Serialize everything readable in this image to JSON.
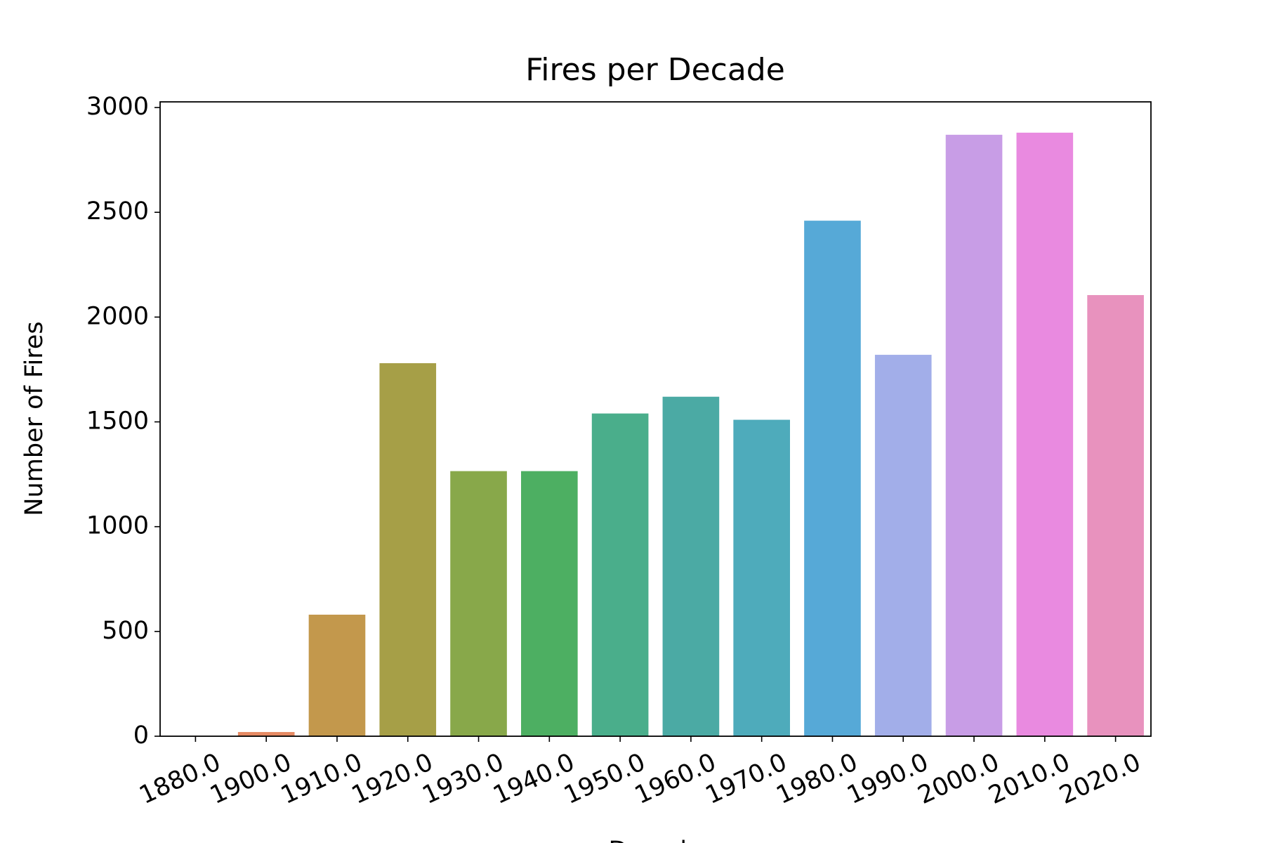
{
  "chart_data": {
    "type": "bar",
    "title": "Fires per Decade",
    "x_label": "Decade",
    "y_label": "Number of Fires",
    "categories": [
      "1880.0",
      "1900.0",
      "1910.0",
      "1920.0",
      "1930.0",
      "1940.0",
      "1950.0",
      "1960.0",
      "1970.0",
      "1980.0",
      "1990.0",
      "2000.0",
      "2010.0",
      "2020.0"
    ],
    "values": [
      2,
      20,
      580,
      1780,
      1265,
      1265,
      1540,
      1620,
      1510,
      2460,
      1820,
      2870,
      2880,
      2105
    ],
    "colors": [
      "#f77189",
      "#e58a63",
      "#c3984c",
      "#a69f47",
      "#88a84a",
      "#4daf62",
      "#4aae8b",
      "#4baaa4",
      "#4eabbb",
      "#56a9d7",
      "#a2aee9",
      "#c89de6",
      "#e98ae0",
      "#e892be"
    ],
    "ylim": [
      0,
      3027
    ],
    "yticks": [
      0,
      500,
      1000,
      1500,
      2000,
      2500,
      3000
    ],
    "grid": false
  }
}
